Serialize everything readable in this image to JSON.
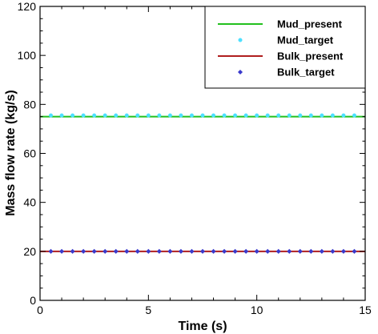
{
  "chart_data": {
    "type": "line",
    "title": "",
    "xlabel": "Time (s)",
    "ylabel": "Mass flow rate (kg/s)",
    "xlim": [
      0,
      15
    ],
    "ylim": [
      0,
      120
    ],
    "xticks": [
      0,
      5,
      10,
      15
    ],
    "yticks": [
      0,
      20,
      40,
      60,
      80,
      100,
      120
    ],
    "grid": false,
    "legend_position": "top-right",
    "series": [
      {
        "name": "Mud_present",
        "style": "line",
        "color": "#22c01e",
        "x": [
          0,
          15
        ],
        "y": [
          75,
          75
        ]
      },
      {
        "name": "Mud_target",
        "style": "marker",
        "marker": "circle",
        "color": "#4de0ff",
        "x": [
          0.5,
          1.0,
          1.5,
          2.0,
          2.5,
          3.0,
          3.5,
          4.0,
          4.5,
          5.0,
          5.5,
          6.0,
          6.5,
          7.0,
          7.5,
          8.0,
          8.5,
          9.0,
          9.5,
          10.0,
          10.5,
          11.0,
          11.5,
          12.0,
          12.5,
          13.0,
          13.5,
          14.0,
          14.5
        ],
        "y": [
          75.5,
          75.5,
          75.5,
          75.5,
          75.5,
          75.5,
          75.5,
          75.5,
          75.5,
          75.5,
          75.5,
          75.5,
          75.5,
          75.5,
          75.5,
          75.5,
          75.5,
          75.5,
          75.5,
          75.5,
          75.5,
          75.5,
          75.5,
          75.5,
          75.5,
          75.5,
          75.5,
          75.5,
          75.5
        ]
      },
      {
        "name": "Bulk_present",
        "style": "line",
        "color": "#b01e1e",
        "x": [
          0,
          15
        ],
        "y": [
          20,
          20
        ]
      },
      {
        "name": "Bulk_target",
        "style": "marker",
        "marker": "diamond",
        "color": "#3a3acc",
        "x": [
          0.5,
          1.0,
          1.5,
          2.0,
          2.5,
          3.0,
          3.5,
          4.0,
          4.5,
          5.0,
          5.5,
          6.0,
          6.5,
          7.0,
          7.5,
          8.0,
          8.5,
          9.0,
          9.5,
          10.0,
          10.5,
          11.0,
          11.5,
          12.0,
          12.5,
          13.0,
          13.5,
          14.0,
          14.5
        ],
        "y": [
          20,
          20,
          20,
          20,
          20,
          20,
          20,
          20,
          20,
          20,
          20,
          20,
          20,
          20,
          20,
          20,
          20,
          20,
          20,
          20,
          20,
          20,
          20,
          20,
          20,
          20,
          20,
          20,
          20
        ]
      }
    ]
  }
}
